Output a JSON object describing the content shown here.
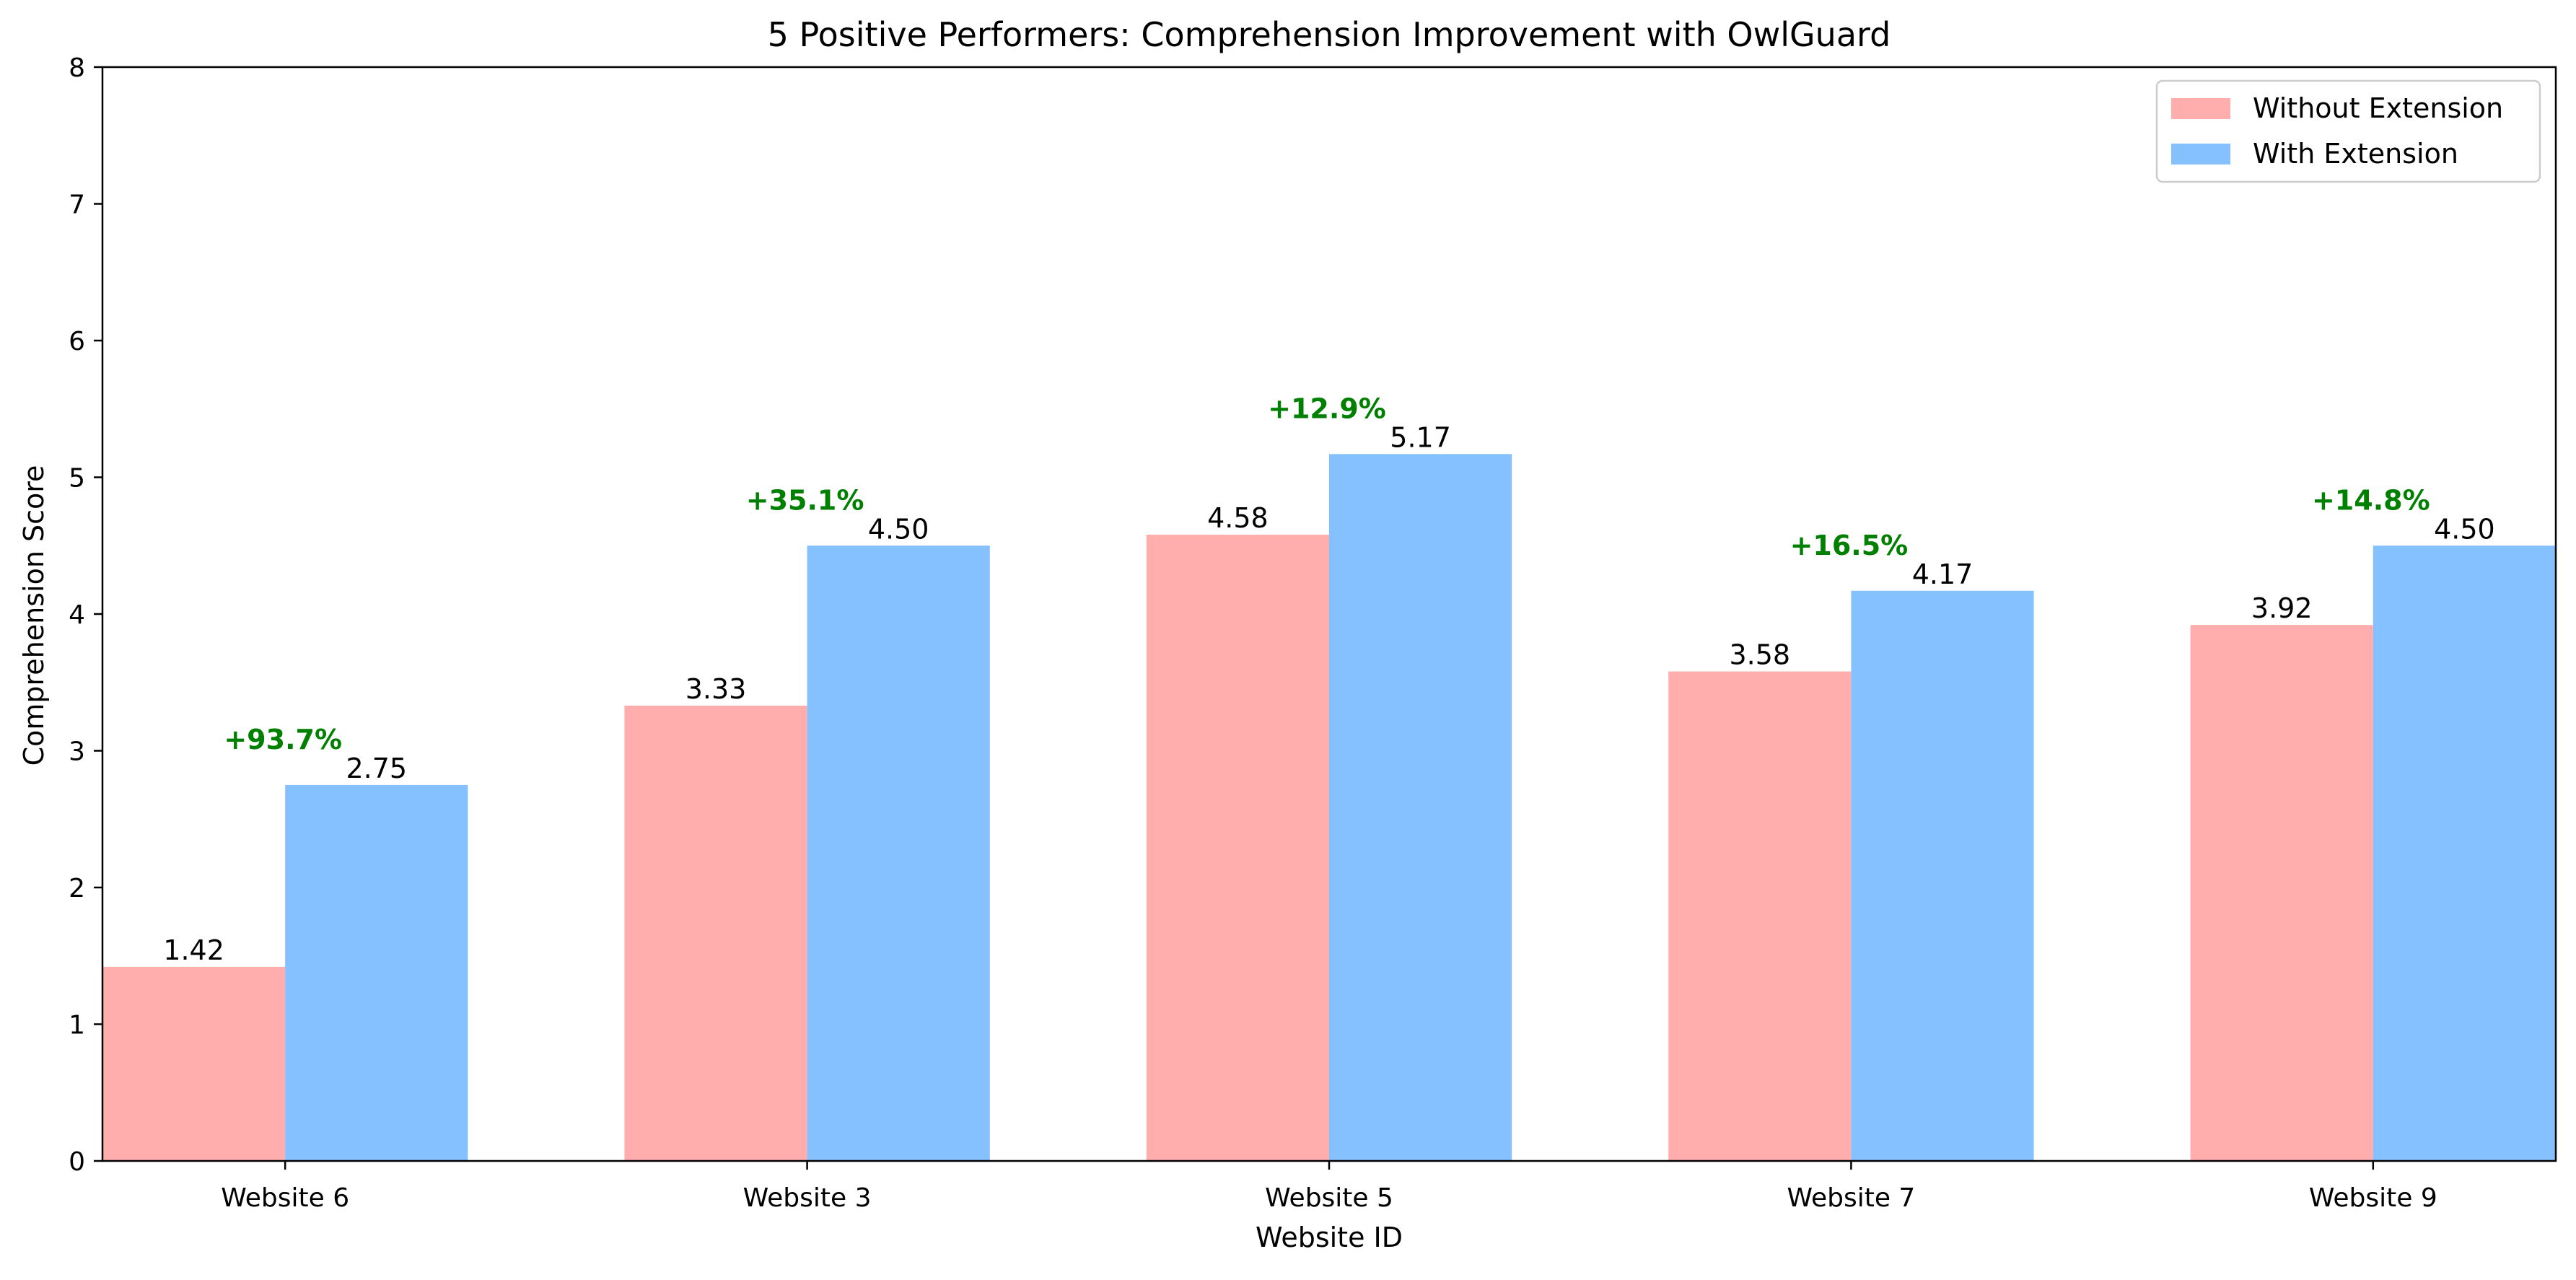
{
  "chart_data": {
    "type": "bar",
    "title": "5 Positive Performers: Comprehension Improvement with OwlGuard",
    "xlabel": "Website ID",
    "ylabel": "Comprehension Score",
    "categories": [
      "Website 6",
      "Website 3",
      "Website 5",
      "Website 7",
      "Website 9"
    ],
    "series": [
      {
        "name": "Without Extension",
        "color": "#FFADAD",
        "values": [
          1.42,
          3.33,
          4.58,
          3.58,
          3.92
        ],
        "labels": [
          "1.42",
          "3.33",
          "4.58",
          "3.58",
          "3.92"
        ]
      },
      {
        "name": "With Extension",
        "color": "#85C1FF",
        "values": [
          2.75,
          4.5,
          5.17,
          4.17,
          4.5
        ],
        "labels": [
          "2.75",
          "4.50",
          "5.17",
          "4.17",
          "4.50"
        ]
      }
    ],
    "annotations": {
      "color": "#008000",
      "labels": [
        "+93.7%",
        "+35.1%",
        "+12.9%",
        "+16.5%",
        "+14.8%"
      ]
    },
    "ylim": [
      0,
      8
    ],
    "yticks": [
      "0",
      "1",
      "2",
      "3",
      "4",
      "5",
      "6",
      "7",
      "8"
    ],
    "grid": false,
    "legend_position": "top-right"
  }
}
